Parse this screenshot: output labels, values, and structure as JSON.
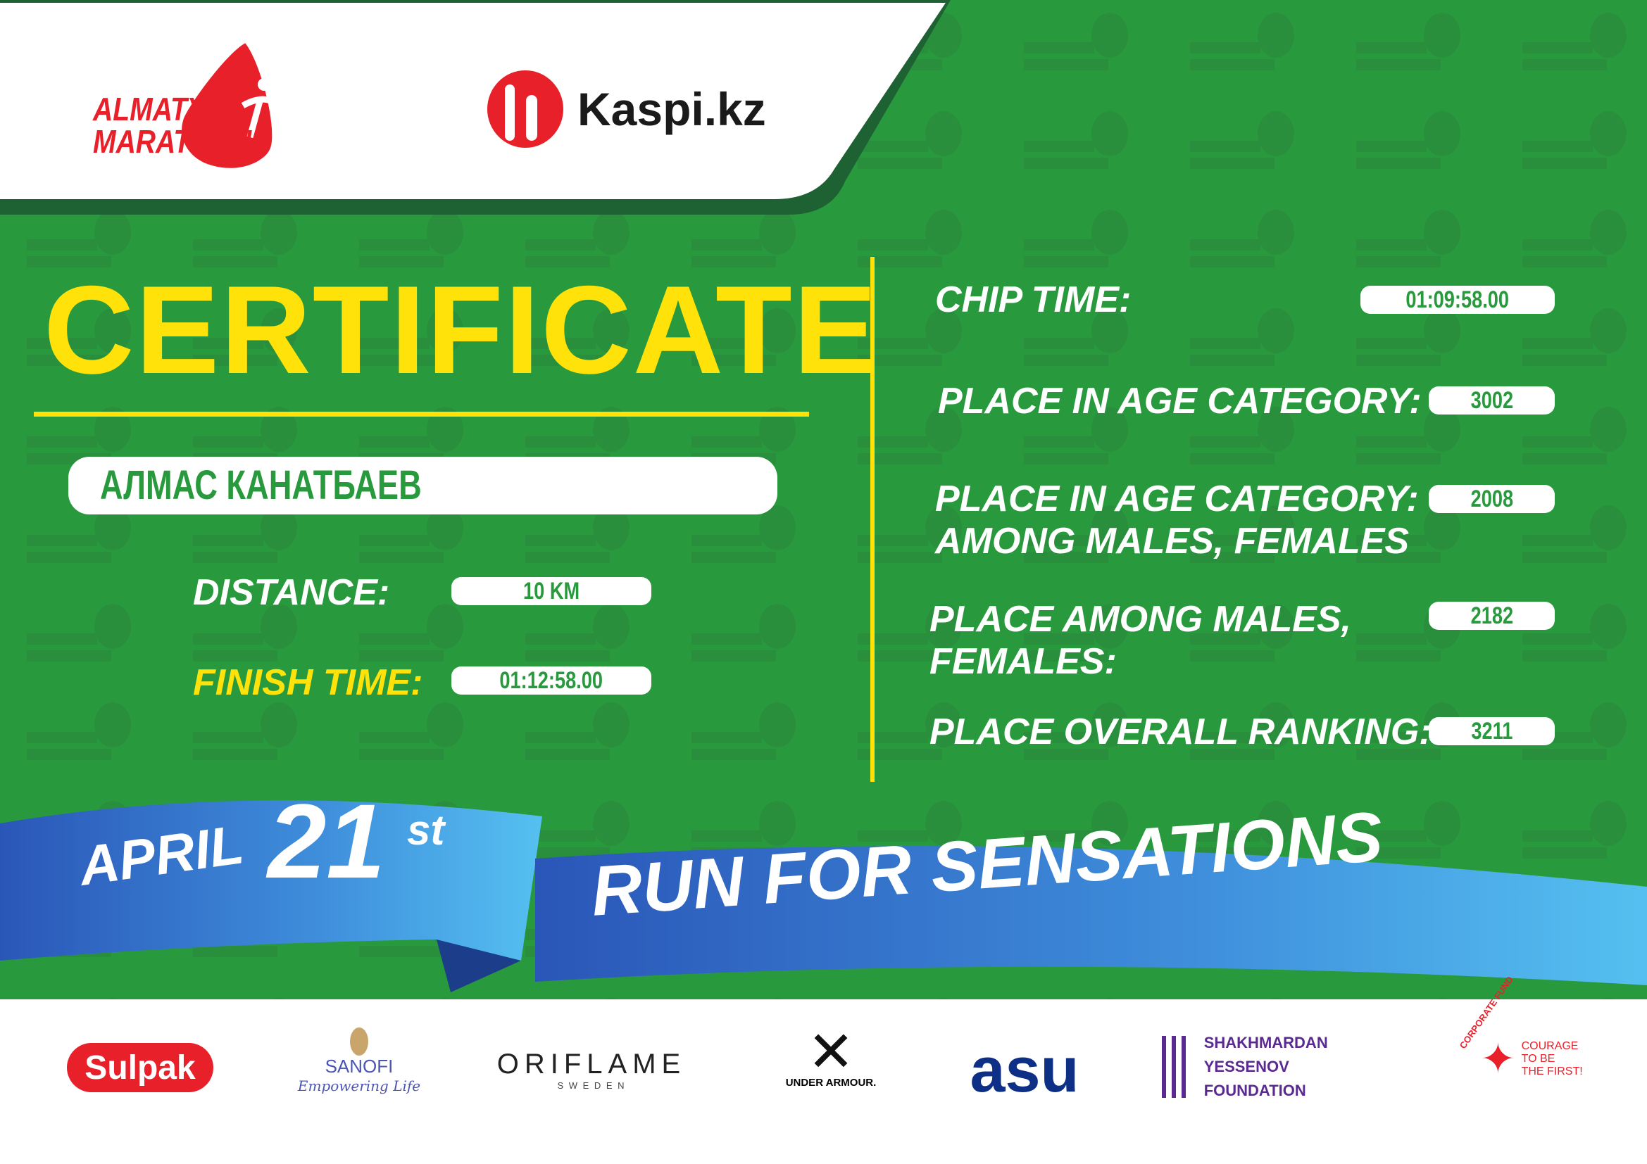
{
  "header": {
    "logo_line1": "ALMATY",
    "logo_line2": "MARATHON",
    "sponsor_title": "Kaspi.kz"
  },
  "certificate": {
    "title": "CERTIFICATE",
    "name": "АЛМАС КАНАТБАЕВ"
  },
  "left": {
    "distance_label": "DISTANCE:",
    "distance_value": "10 KM",
    "finish_label": "FINISH TIME:",
    "finish_value": "01:12:58.00"
  },
  "right": {
    "chip_label": "CHIP TIME:",
    "chip_value": "01:09:58.00",
    "age_label": "PLACE IN AGE CATEGORY:",
    "age_value": "3002",
    "age_gender_label_1": "PLACE IN AGE CATEGORY:",
    "age_gender_label_2": "AMONG MALES, FEMALES",
    "age_gender_value": "2008",
    "gender_label_1": "PLACE AMONG MALES,",
    "gender_label_2": "FEMALES:",
    "gender_value": "2182",
    "overall_label": "PLACE OVERALL RANKING:",
    "overall_value": "3211"
  },
  "ribbon": {
    "month": "APRIL",
    "day": "21",
    "suffix": "st",
    "slogan": "RUN FOR SENSATIONS"
  },
  "sponsors": {
    "sulpak": "Sulpak",
    "sanofi": "SANOFI",
    "sanofi_tag": "Empowering Life",
    "oriflame": "ORIFLAME",
    "oriflame_sub": "S W E D E N",
    "ua": "UNDER ARMOUR.",
    "asu": "asu",
    "yessenov_1": "SHAKHMARDAN YESSENOV",
    "yessenov_2": "FOUNDATION",
    "courage_1": "COURAGE",
    "courage_2": "TO BE",
    "courage_3": "THE FIRST!",
    "courage_arc": "CORPORATE FUND"
  },
  "colors": {
    "green": "#289a3d",
    "dark_green": "#1e6234",
    "yellow": "#ffe20a",
    "red": "#e8202a",
    "blue": "#2f6fcb"
  }
}
